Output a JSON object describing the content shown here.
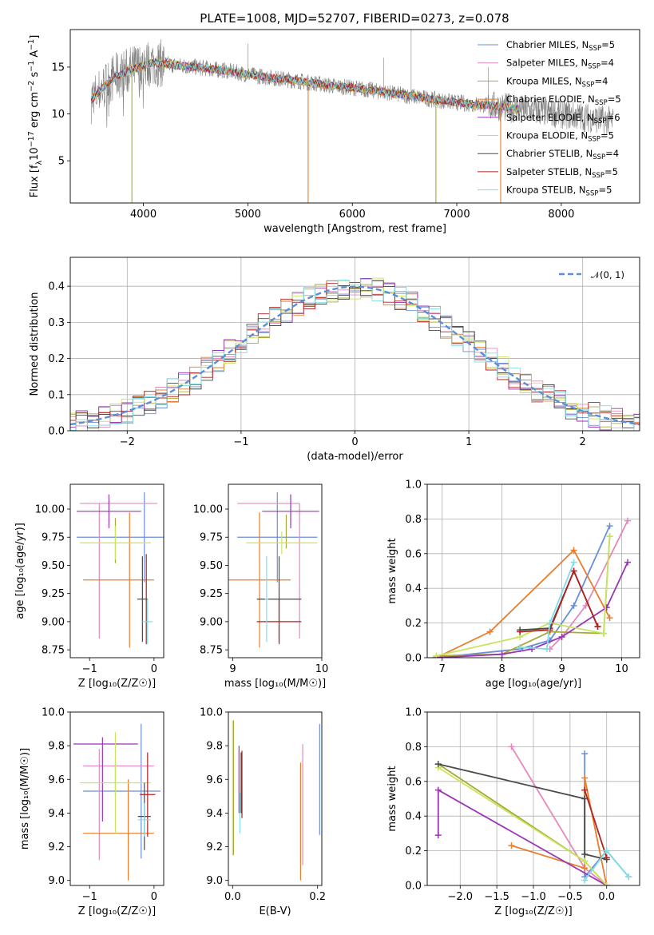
{
  "figure": {
    "title": "PLATE=1008, MJD=52707, FIBERID=0273, z=0.078"
  },
  "colors": {
    "Chabrier MILES": "#6a8fd8",
    "Salpeter MILES": "#e389bd",
    "Kroupa MILES": "#a9a934",
    "Chabrier ELODIE": "#e87d2b",
    "Salpeter ELODIE": "#9a35b5",
    "Kroupa ELODIE": "#c7e55e",
    "Chabrier STELIB": "#4a4a4a",
    "Salpeter STELIB": "#b22222",
    "Kroupa STELIB": "#7fdde8",
    "data": "#808080",
    "normal": "#5a8fd8"
  },
  "chart_data": [
    {
      "id": "spectrum",
      "type": "line",
      "title": "PLATE=1008, MJD=52707, FIBERID=0273, z=0.078",
      "xlabel": "wavelength [Angstrom, rest frame]",
      "ylabel_main": "Flux [f",
      "ylabel_sub1": "λ",
      "ylabel_mid": "10",
      "ylabel_sup1": "−17",
      "ylabel_rest": " erg cm",
      "ylabel_sup2": "−2",
      "ylabel_rest2": " s",
      "ylabel_sup3": "−1",
      "ylabel_rest3": " A",
      "ylabel_sup4": "−1",
      "ylabel_end": "]",
      "xlim": [
        3300,
        8750
      ],
      "ylim": [
        0.5,
        19
      ],
      "xticks": [
        4000,
        5000,
        6000,
        7000,
        8000
      ],
      "yticks": [
        5,
        10,
        15
      ],
      "continuum": {
        "x": [
          3500,
          3700,
          3900,
          4100,
          4300,
          4500,
          4800,
          5000,
          5200,
          5500,
          5800,
          6000,
          6200,
          6500,
          6800,
          7000,
          7200,
          7400,
          7600,
          8000,
          8500
        ],
        "y": [
          11.5,
          13.8,
          14.8,
          15.5,
          15.2,
          15.0,
          14.6,
          14.2,
          13.9,
          13.5,
          13.0,
          12.8,
          12.5,
          12.0,
          11.5,
          11.2,
          11.0,
          10.8,
          10.5,
          10.0,
          9.2
        ]
      },
      "legend": [
        {
          "label": "Chabrier MILES, N",
          "sub": "SSP",
          "tail": "=5"
        },
        {
          "label": "Salpeter MILES, N",
          "sub": "SSP",
          "tail": "=4"
        },
        {
          "label": "Kroupa MILES, N",
          "sub": "SSP",
          "tail": "=4"
        },
        {
          "label": "Chabrier ELODIE, N",
          "sub": "SSP",
          "tail": "=5"
        },
        {
          "label": "Salpeter ELODIE, N",
          "sub": "SSP",
          "tail": "=6"
        },
        {
          "label": "Kroupa ELODIE, N",
          "sub": "SSP",
          "tail": "=5"
        },
        {
          "label": "Chabrier STELIB, N",
          "sub": "SSP",
          "tail": "=4"
        },
        {
          "label": "Salpeter STELIB, N",
          "sub": "SSP",
          "tail": "=5"
        },
        {
          "label": "Kroupa STELIB, N",
          "sub": "SSP",
          "tail": "=5"
        }
      ],
      "legend_placement": "top-right",
      "grid": false
    },
    {
      "id": "residuals",
      "type": "histogram",
      "xlabel": "(data-model)/error",
      "ylabel": "Normed distribution",
      "xlim": [
        -2.5,
        2.5
      ],
      "ylim": [
        0,
        0.48
      ],
      "xticks": [
        -2,
        -1,
        0,
        1,
        2
      ],
      "yticks": [
        0.0,
        0.1,
        0.2,
        0.3,
        0.4
      ],
      "bin_width": 0.1,
      "legend": "𝒩(0, 1)",
      "legend_placement": "top-right",
      "grid": true
    },
    {
      "id": "age-vs-Z",
      "type": "errorbar",
      "xlabel": "Z [log₁₀(Z/Z☉)]",
      "ylabel": "age  [log₁₀(age/yr)]",
      "xlim": [
        -1.3,
        0.15
      ],
      "ylim": [
        8.68,
        10.22
      ],
      "xticks": [
        -1,
        0
      ],
      "yticks": [
        8.75,
        9.0,
        9.25,
        9.5,
        9.75,
        10.0
      ],
      "points": [
        {
          "model": "Chabrier MILES",
          "x": -0.15,
          "y": 9.75,
          "xerr": 1.05,
          "yerr": 0.4
        },
        {
          "model": "Salpeter MILES",
          "x": -0.55,
          "y": 10.05,
          "xerr": 0.6,
          "yerr": 0.0
        },
        {
          "model": "Salpeter MILES",
          "x": -0.85,
          "y": 9.45,
          "xerr": 0.0,
          "yerr": 0.6
        },
        {
          "model": "Kroupa MILES",
          "x": -0.6,
          "y": 9.72,
          "xerr": 0.0,
          "yerr": 0.2
        },
        {
          "model": "Chabrier ELODIE",
          "x": -0.55,
          "y": 9.37,
          "xerr": 0.55,
          "yerr": 0.0
        },
        {
          "model": "Chabrier ELODIE",
          "x": -0.38,
          "y": 9.37,
          "xerr": 0.0,
          "yerr": 0.6
        },
        {
          "model": "Salpeter ELODIE",
          "x": -0.7,
          "y": 9.98,
          "xerr": 0.5,
          "yerr": 0.15
        },
        {
          "model": "Kroupa ELODIE",
          "x": -0.6,
          "y": 9.7,
          "xerr": 0.55,
          "yerr": 0.15
        },
        {
          "model": "Chabrier STELIB",
          "x": -0.18,
          "y": 9.2,
          "xerr": 0.08,
          "yerr": 0.38
        },
        {
          "model": "Salpeter STELIB",
          "x": -0.12,
          "y": 9.2,
          "xerr": 0.0,
          "yerr": 0.4
        },
        {
          "model": "Kroupa STELIB",
          "x": -0.1,
          "y": 9.0,
          "xerr": 0.08,
          "yerr": 0.2
        }
      ]
    },
    {
      "id": "age-vs-mass",
      "type": "errorbar",
      "xlabel": "mass [log₁₀(M/M☉)]",
      "xlim": [
        8.95,
        10.0
      ],
      "ylim": [
        8.68,
        10.22
      ],
      "xticks": [
        9,
        10
      ],
      "yticks": [
        8.75,
        9.0,
        9.25,
        9.5,
        9.75,
        10.0
      ],
      "points": [
        {
          "model": "Chabrier MILES",
          "x": 9.5,
          "y": 9.75,
          "xerr": 0.45,
          "yerr": 0.4
        },
        {
          "model": "Salpeter MILES",
          "x": 9.75,
          "y": 9.45,
          "xerr": 0.0,
          "yerr": 0.6
        },
        {
          "model": "Salpeter MILES",
          "x": 9.4,
          "y": 10.05,
          "xerr": 0.35,
          "yerr": 0.0
        },
        {
          "model": "Kroupa MILES",
          "x": 9.6,
          "y": 9.8,
          "xerr": 0.0,
          "yerr": 0.15
        },
        {
          "model": "Chabrier ELODIE",
          "x": 9.3,
          "y": 9.37,
          "xerr": 0.35,
          "yerr": 0.6
        },
        {
          "model": "Salpeter ELODIE",
          "x": 9.65,
          "y": 9.98,
          "xerr": 0.32,
          "yerr": 0.15
        },
        {
          "model": "Kroupa ELODIE",
          "x": 9.55,
          "y": 9.7,
          "xerr": 0.4,
          "yerr": 0.1
        },
        {
          "model": "Chabrier STELIB",
          "x": 9.52,
          "y": 9.2,
          "xerr": 0.25,
          "yerr": 0.38
        },
        {
          "model": "Salpeter STELIB",
          "x": 9.52,
          "y": 9.0,
          "xerr": 0.25,
          "yerr": 0.2
        },
        {
          "model": "Kroupa STELIB",
          "x": 9.38,
          "y": 9.2,
          "xerr": 0.02,
          "yerr": 0.38
        }
      ]
    },
    {
      "id": "massweight-vs-age",
      "type": "line",
      "xlabel": "age  [log₁₀(age/yr)]",
      "ylabel": "mass weight",
      "xlim": [
        6.75,
        10.3
      ],
      "ylim": [
        0,
        1.0
      ],
      "xticks": [
        7,
        8,
        9,
        10
      ],
      "yticks": [
        0.0,
        0.2,
        0.4,
        0.6,
        0.8,
        1.0
      ],
      "grid": true,
      "series": [
        {
          "model": "Chabrier MILES",
          "x": [
            6.9,
            8.3,
            8.8,
            9.2,
            9.8
          ],
          "y": [
            0.0,
            0.05,
            0.1,
            0.3,
            0.76
          ]
        },
        {
          "model": "Salpeter MILES",
          "x": [
            8.8,
            9.0,
            9.4,
            10.1
          ],
          "y": [
            0.05,
            0.12,
            0.3,
            0.79
          ]
        },
        {
          "model": "Kroupa MILES",
          "x": [
            6.9,
            8.0,
            8.8,
            9.7,
            9.8
          ],
          "y": [
            0.01,
            0.02,
            0.15,
            0.14,
            0.7
          ]
        },
        {
          "model": "Chabrier ELODIE",
          "x": [
            6.9,
            7.8,
            9.2,
            9.8
          ],
          "y": [
            0.0,
            0.15,
            0.62,
            0.23
          ]
        },
        {
          "model": "Salpeter ELODIE",
          "x": [
            6.9,
            8.0,
            8.5,
            9.0,
            9.75,
            10.1
          ],
          "y": [
            0.0,
            0.02,
            0.05,
            0.12,
            0.29,
            0.55
          ]
        },
        {
          "model": "Kroupa ELODIE",
          "x": [
            6.9,
            8.3,
            8.8,
            9.7,
            9.8
          ],
          "y": [
            0.01,
            0.12,
            0.2,
            0.14,
            0.7
          ]
        },
        {
          "model": "Chabrier STELIB",
          "x": [
            8.3,
            8.8,
            9.2,
            9.6
          ],
          "y": [
            0.16,
            0.17,
            0.5,
            0.18
          ]
        },
        {
          "model": "Salpeter STELIB",
          "x": [
            8.3,
            8.8,
            9.2,
            9.6
          ],
          "y": [
            0.15,
            0.16,
            0.5,
            0.18
          ]
        },
        {
          "model": "Kroupa STELIB",
          "x": [
            8.3,
            8.75,
            8.8,
            9.2
          ],
          "y": [
            0.06,
            0.05,
            0.2,
            0.55
          ]
        }
      ]
    },
    {
      "id": "mass-vs-Z",
      "type": "errorbar",
      "xlabel": "Z [log₁₀(Z/Z☉)]",
      "ylabel": "mass [log₁₀(M/M☉)]",
      "xlim": [
        -1.3,
        0.15
      ],
      "ylim": [
        8.97,
        10.0
      ],
      "xticks": [
        -1,
        0
      ],
      "yticks": [
        9.0,
        9.2,
        9.4,
        9.6,
        9.8,
        10.0
      ],
      "points": [
        {
          "model": "Chabrier MILES",
          "x": -0.5,
          "y": 9.53,
          "xerr": 0.6,
          "yerr": 0.0
        },
        {
          "model": "Chabrier MILES",
          "x": -0.2,
          "y": 9.53,
          "xerr": 0.0,
          "yerr": 0.4
        },
        {
          "model": "Salpeter MILES",
          "x": -0.55,
          "y": 9.68,
          "xerr": 0.55,
          "yerr": 0.0
        },
        {
          "model": "Salpeter MILES",
          "x": -0.85,
          "y": 9.45,
          "xerr": 0.0,
          "yerr": 0.33
        },
        {
          "model": "Kroupa MILES",
          "x": -0.6,
          "y": 9.6,
          "xerr": 0.0,
          "yerr": 0.1
        },
        {
          "model": "Chabrier ELODIE",
          "x": -0.55,
          "y": 9.28,
          "xerr": 0.55,
          "yerr": 0.0
        },
        {
          "model": "Chabrier ELODIE",
          "x": -0.4,
          "y": 9.3,
          "xerr": 0.0,
          "yerr": 0.3
        },
        {
          "model": "Salpeter ELODIE",
          "x": -0.75,
          "y": 9.81,
          "xerr": 0.5,
          "yerr": 0.0
        },
        {
          "model": "Salpeter ELODIE",
          "x": -0.8,
          "y": 9.6,
          "xerr": 0.0,
          "yerr": 0.25
        },
        {
          "model": "Kroupa ELODIE",
          "x": -0.6,
          "y": 9.58,
          "xerr": 0.55,
          "yerr": 0.3
        },
        {
          "model": "Chabrier STELIB",
          "x": -0.15,
          "y": 9.38,
          "xerr": 0.1,
          "yerr": 0.2
        },
        {
          "model": "Salpeter STELIB",
          "x": -0.1,
          "y": 9.51,
          "xerr": 0.12,
          "yerr": 0.25
        },
        {
          "model": "Kroupa STELIB",
          "x": -0.15,
          "y": 9.36,
          "xerr": 0.1,
          "yerr": 0.1
        }
      ]
    },
    {
      "id": "mass-vs-EBV",
      "type": "errorbar",
      "xlabel": "E(B-V)",
      "xlim": [
        -0.01,
        0.21
      ],
      "ylim": [
        8.97,
        10.0
      ],
      "xticks": [
        0.0,
        0.2
      ],
      "yticks": [
        9.0,
        9.2,
        9.4,
        9.6,
        9.8,
        10.0
      ],
      "points": [
        {
          "model": "Chabrier MILES",
          "x": 0.205,
          "y": 9.6,
          "xerr": 0.0,
          "yerr": 0.33
        },
        {
          "model": "Salpeter MILES",
          "x": 0.165,
          "y": 9.45,
          "xerr": 0.0,
          "yerr": 0.36
        },
        {
          "model": "Kroupa MILES",
          "x": 0.002,
          "y": 9.55,
          "xerr": 0.0,
          "yerr": 0.4
        },
        {
          "model": "Chabrier ELODIE",
          "x": 0.16,
          "y": 9.35,
          "xerr": 0.0,
          "yerr": 0.35
        },
        {
          "model": "Salpeter ELODIE",
          "x": 0.015,
          "y": 9.6,
          "xerr": 0.0,
          "yerr": 0.2
        },
        {
          "model": "Kroupa ELODIE",
          "x": 0.0,
          "y": 9.55,
          "xerr": 0.0,
          "yerr": 0.4
        },
        {
          "model": "Chabrier STELIB",
          "x": 0.02,
          "y": 9.58,
          "xerr": 0.0,
          "yerr": 0.18
        },
        {
          "model": "Salpeter STELIB",
          "x": 0.022,
          "y": 9.57,
          "xerr": 0.0,
          "yerr": 0.2
        },
        {
          "model": "Kroupa STELIB",
          "x": 0.017,
          "y": 9.4,
          "xerr": 0.0,
          "yerr": 0.12
        }
      ]
    },
    {
      "id": "massweight-vs-Z",
      "type": "line",
      "xlabel": "Z [log₁₀(Z/Z☉)]",
      "ylabel": "mass weight",
      "xlim": [
        -2.45,
        0.45
      ],
      "ylim": [
        0,
        1.0
      ],
      "xticks": [
        -2.0,
        -1.5,
        -1.0,
        -0.5,
        0.0
      ],
      "yticks": [
        0.0,
        0.2,
        0.4,
        0.6,
        0.8,
        1.0
      ],
      "grid": true,
      "series": [
        {
          "model": "Chabrier MILES",
          "x": [
            -0.3,
            -0.3,
            0.0,
            0.3
          ],
          "y": [
            0.76,
            0.05,
            0.2,
            0.05
          ]
        },
        {
          "model": "Salpeter MILES",
          "x": [
            -1.3,
            -0.3,
            0.0
          ],
          "y": [
            0.8,
            0.1,
            0.0
          ]
        },
        {
          "model": "Kroupa MILES",
          "x": [
            -2.3,
            -0.3,
            0.0
          ],
          "y": [
            0.7,
            0.14,
            0.0
          ]
        },
        {
          "model": "Chabrier ELODIE",
          "x": [
            -1.3,
            -0.3,
            -0.3,
            0.0
          ],
          "y": [
            0.23,
            0.1,
            0.62,
            0.0
          ]
        },
        {
          "model": "Salpeter ELODIE",
          "x": [
            -2.3,
            -2.3,
            0.0
          ],
          "y": [
            0.29,
            0.55,
            0.0
          ]
        },
        {
          "model": "Kroupa ELODIE",
          "x": [
            -2.3,
            -0.3,
            0.0
          ],
          "y": [
            0.68,
            0.14,
            0.0
          ]
        },
        {
          "model": "Chabrier STELIB",
          "x": [
            -2.3,
            -0.3,
            -0.3,
            0.0
          ],
          "y": [
            0.7,
            0.5,
            0.18,
            0.15
          ]
        },
        {
          "model": "Salpeter STELIB",
          "x": [
            -0.3,
            0.0
          ],
          "y": [
            0.55,
            0.16
          ]
        },
        {
          "model": "Kroupa STELIB",
          "x": [
            -0.3,
            0.0,
            0.3
          ],
          "y": [
            0.03,
            0.2,
            0.05
          ]
        }
      ]
    }
  ]
}
